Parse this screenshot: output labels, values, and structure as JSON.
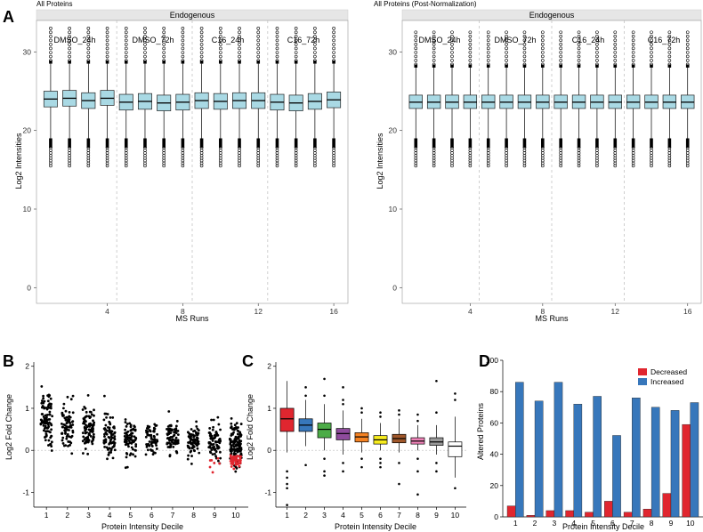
{
  "panel_labels": {
    "A": "A",
    "B": "B",
    "C": "C",
    "D": "D"
  },
  "colors": {
    "box_fill": "#a9d9e4",
    "strip_header": "#e6e6e6",
    "decreased": "#e0262f",
    "increased": "#3777bb",
    "decile_fills": [
      "#e0262f",
      "#3777bb",
      "#4cac47",
      "#8e4b9c",
      "#f48222",
      "#f7ec1e",
      "#a0572a",
      "#ef83b8",
      "#999999",
      "#ffffff"
    ]
  },
  "chart_data": [
    {
      "id": "A-left",
      "type": "box",
      "title": "All Proteins",
      "strip_label": "Endogenous",
      "group_labels": [
        "DMSO_24h",
        "DMSO_72h",
        "C16_24h",
        "C16_72h"
      ],
      "xlabel": "MS Runs",
      "ylabel": "Log2 Intensities",
      "x_ticks": [
        4,
        8,
        12,
        16
      ],
      "y_ticks": [
        0,
        10,
        20,
        30
      ],
      "ylim": [
        -2,
        34
      ],
      "runs": 16,
      "medians": [
        24.0,
        24.1,
        23.8,
        24.1,
        23.6,
        23.7,
        23.5,
        23.6,
        23.8,
        23.7,
        23.8,
        23.8,
        23.6,
        23.5,
        23.7,
        23.9
      ],
      "q1": [
        23.0,
        23.1,
        22.8,
        23.2,
        22.6,
        22.7,
        22.5,
        22.6,
        22.8,
        22.7,
        22.8,
        22.8,
        22.6,
        22.5,
        22.7,
        22.9
      ],
      "q3": [
        25.0,
        25.1,
        24.8,
        25.1,
        24.6,
        24.7,
        24.5,
        24.6,
        24.8,
        24.7,
        24.8,
        24.8,
        24.6,
        24.5,
        24.7,
        24.9
      ],
      "whisker_low": 19.0,
      "whisker_high": 28.5,
      "outlier_range_low": [
        15.5,
        19.0
      ],
      "outlier_range_high": [
        28.5,
        33.0
      ]
    },
    {
      "id": "A-right",
      "type": "box",
      "title": "All Proteins (Post-Normalization)",
      "strip_label": "Endogenous",
      "group_labels": [
        "DMSO_24h",
        "DMSO_72h",
        "C16_24h",
        "C16_72h"
      ],
      "xlabel": "MS Runs",
      "ylabel": "Log2 Intensities",
      "x_ticks": [
        4,
        8,
        12,
        16
      ],
      "y_ticks": [
        0,
        10,
        20,
        30
      ],
      "ylim": [
        -2,
        34
      ],
      "runs": 16,
      "medians": [
        23.6,
        23.6,
        23.6,
        23.6,
        23.6,
        23.6,
        23.6,
        23.6,
        23.6,
        23.6,
        23.6,
        23.6,
        23.6,
        23.6,
        23.6,
        23.6
      ],
      "q1": [
        22.8,
        22.8,
        22.8,
        22.8,
        22.8,
        22.8,
        22.8,
        22.8,
        22.8,
        22.8,
        22.8,
        22.8,
        22.8,
        22.8,
        22.8,
        22.8
      ],
      "q3": [
        24.5,
        24.5,
        24.5,
        24.5,
        24.5,
        24.5,
        24.5,
        24.5,
        24.5,
        24.5,
        24.5,
        24.5,
        24.5,
        24.5,
        24.5,
        24.5
      ],
      "whisker_low": 19.0,
      "whisker_high": 28.0,
      "outlier_range_low": [
        15.5,
        19.0
      ],
      "outlier_range_high": [
        28.0,
        32.5
      ]
    },
    {
      "id": "B",
      "type": "scatter",
      "xlabel": "Protein Intensity Decile",
      "ylabel": "Log2 Fold Change",
      "categories": [
        "1",
        "2",
        "3",
        "4",
        "5",
        "6",
        "7",
        "8",
        "9",
        "10"
      ],
      "y_ticks": [
        -1,
        0,
        1,
        2
      ],
      "ylim": [
        -1.35,
        2.1
      ],
      "counts": [
        93,
        75,
        90,
        76,
        80,
        62,
        79,
        75,
        83,
        132
      ],
      "centers": [
        0.75,
        0.58,
        0.5,
        0.38,
        0.3,
        0.25,
        0.27,
        0.22,
        0.2,
        0.08
      ],
      "spreads": [
        0.38,
        0.27,
        0.27,
        0.24,
        0.21,
        0.19,
        0.2,
        0.19,
        0.22,
        0.28
      ],
      "red_counts": [
        0,
        0,
        0,
        0,
        0,
        0,
        0,
        0,
        7,
        48
      ]
    },
    {
      "id": "C",
      "type": "box",
      "xlabel": "Protein Intensity Decile",
      "ylabel": "Log2 Fold Change",
      "categories": [
        "1",
        "2",
        "3",
        "4",
        "5",
        "6",
        "7",
        "8",
        "9",
        "10"
      ],
      "y_ticks": [
        -1,
        0,
        1,
        2
      ],
      "ylim": [
        -1.35,
        2.1
      ],
      "median": [
        0.75,
        0.6,
        0.5,
        0.4,
        0.32,
        0.25,
        0.28,
        0.22,
        0.2,
        0.1
      ],
      "q1": [
        0.45,
        0.45,
        0.3,
        0.25,
        0.2,
        0.15,
        0.18,
        0.15,
        0.12,
        -0.15
      ],
      "q3": [
        1.0,
        0.75,
        0.65,
        0.52,
        0.42,
        0.35,
        0.38,
        0.3,
        0.3,
        0.2
      ],
      "whisker_low": [
        -0.05,
        0.1,
        0.0,
        -0.1,
        -0.05,
        0.0,
        -0.05,
        0.0,
        -0.1,
        -0.65
      ],
      "whisker_high": [
        1.65,
        1.2,
        1.1,
        0.95,
        0.75,
        0.65,
        0.75,
        0.6,
        0.6,
        0.8
      ],
      "outliers": [
        [
          -0.5,
          -0.65,
          -0.8,
          -0.9,
          -1.3
        ],
        [
          -0.35,
          1.5,
          1.3
        ],
        [
          -0.2,
          -0.5,
          -0.6,
          1.3,
          1.7
        ],
        [
          -0.3,
          -0.5,
          1.1,
          1.2,
          1.5
        ],
        [
          -0.2,
          -0.4,
          0.9,
          1.0
        ],
        [
          -0.2,
          -0.3,
          -0.4,
          0.8,
          0.9
        ],
        [
          -0.3,
          -0.8,
          0.85,
          0.95
        ],
        [
          -0.2,
          -0.5,
          -1.05,
          0.7,
          0.85
        ],
        [
          -0.3,
          -0.5,
          0.9,
          1.65
        ],
        [
          -0.9,
          1.2,
          1.35
        ]
      ]
    },
    {
      "id": "D",
      "type": "bar",
      "xlabel": "Protein Intensity Decile",
      "ylabel": "Altered Proteins",
      "categories": [
        "1",
        "2",
        "3",
        "4",
        "5",
        "6",
        "7",
        "8",
        "9",
        "10"
      ],
      "y_ticks": [
        0,
        20,
        40,
        60,
        80,
        100
      ],
      "ylim": [
        0,
        100
      ],
      "series": [
        {
          "name": "Decreased",
          "values": [
            7,
            1,
            4,
            4,
            3,
            10,
            3,
            5,
            15,
            59
          ]
        },
        {
          "name": "Increased",
          "values": [
            86,
            74,
            86,
            72,
            77,
            52,
            76,
            70,
            68,
            73
          ]
        }
      ],
      "legend_position": "top-right"
    }
  ]
}
